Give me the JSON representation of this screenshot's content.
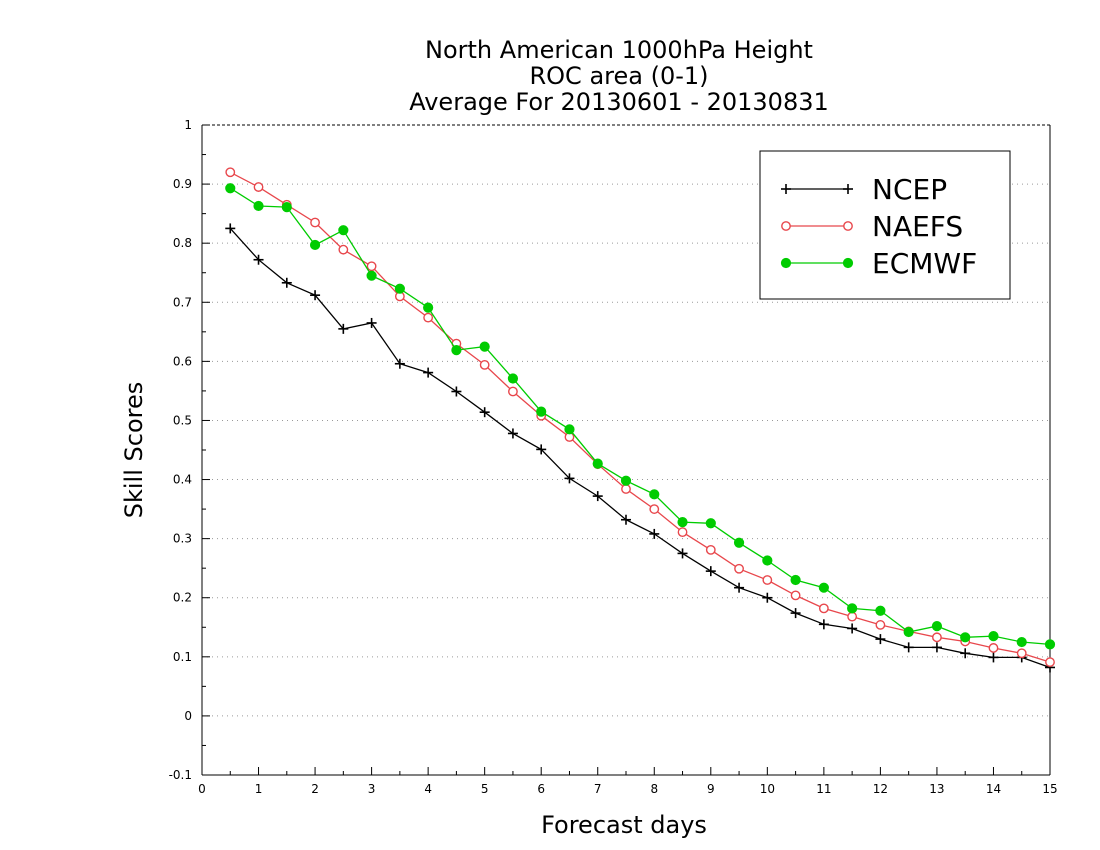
{
  "chart_data": {
    "type": "line",
    "title": [
      "North American 1000hPa Height",
      "ROC area (0-1)",
      "Average For 20130601 - 20130831"
    ],
    "xlabel": "Forecast days",
    "ylabel": "Skill Scores",
    "xlim": [
      0,
      15
    ],
    "ylim": [
      -0.1,
      1
    ],
    "xticks": [
      0,
      1,
      2,
      3,
      4,
      5,
      6,
      7,
      8,
      9,
      10,
      11,
      12,
      13,
      14,
      15
    ],
    "yticks": [
      -0.1,
      0,
      0.1,
      0.2,
      0.3,
      0.4,
      0.5,
      0.6,
      0.7,
      0.8,
      0.9,
      1
    ],
    "ytick_labels": [
      "-0.1",
      "0",
      "0.1",
      "0.2",
      "0.3",
      "0.4",
      "0.5",
      "0.6",
      "0.7",
      "0.8",
      "0.9",
      "1"
    ],
    "grid": "horizontal-dotted",
    "legend_position": "top-right",
    "x": [
      0.5,
      1,
      1.5,
      2,
      2.5,
      3,
      3.5,
      4,
      4.5,
      5,
      5.5,
      6,
      6.5,
      7,
      7.5,
      8,
      8.5,
      9,
      9.5,
      10,
      10.5,
      11,
      11.5,
      12,
      12.5,
      13,
      13.5,
      14,
      14.5,
      15
    ],
    "series": [
      {
        "name": "NCEP",
        "color": "#000000",
        "marker": "plus",
        "values": [
          0.825,
          0.772,
          0.733,
          0.712,
          0.655,
          0.665,
          0.596,
          0.581,
          0.549,
          0.514,
          0.478,
          0.451,
          0.402,
          0.372,
          0.332,
          0.308,
          0.275,
          0.245,
          0.217,
          0.2,
          0.174,
          0.155,
          0.148,
          0.13,
          0.116,
          0.116,
          0.106,
          0.099,
          0.099,
          0.082
        ]
      },
      {
        "name": "NAEFS",
        "color": "#e8474c",
        "marker": "open-circle",
        "values": [
          0.92,
          0.895,
          0.865,
          0.835,
          0.789,
          0.761,
          0.71,
          0.674,
          0.63,
          0.594,
          0.549,
          0.508,
          0.472,
          0.426,
          0.384,
          0.35,
          0.311,
          0.281,
          0.249,
          0.23,
          0.204,
          0.182,
          0.168,
          0.154,
          0.143,
          0.133,
          0.126,
          0.115,
          0.106,
          0.091
        ]
      },
      {
        "name": "ECMWF",
        "color": "#00cc00",
        "marker": "filled-circle",
        "values": [
          0.893,
          0.863,
          0.861,
          0.797,
          0.822,
          0.745,
          0.723,
          0.691,
          0.619,
          0.625,
          0.571,
          0.515,
          0.485,
          0.427,
          0.398,
          0.375,
          0.328,
          0.326,
          0.293,
          0.263,
          0.23,
          0.217,
          0.182,
          0.178,
          0.142,
          0.152,
          0.133,
          0.135,
          0.125,
          0.121
        ]
      }
    ]
  }
}
